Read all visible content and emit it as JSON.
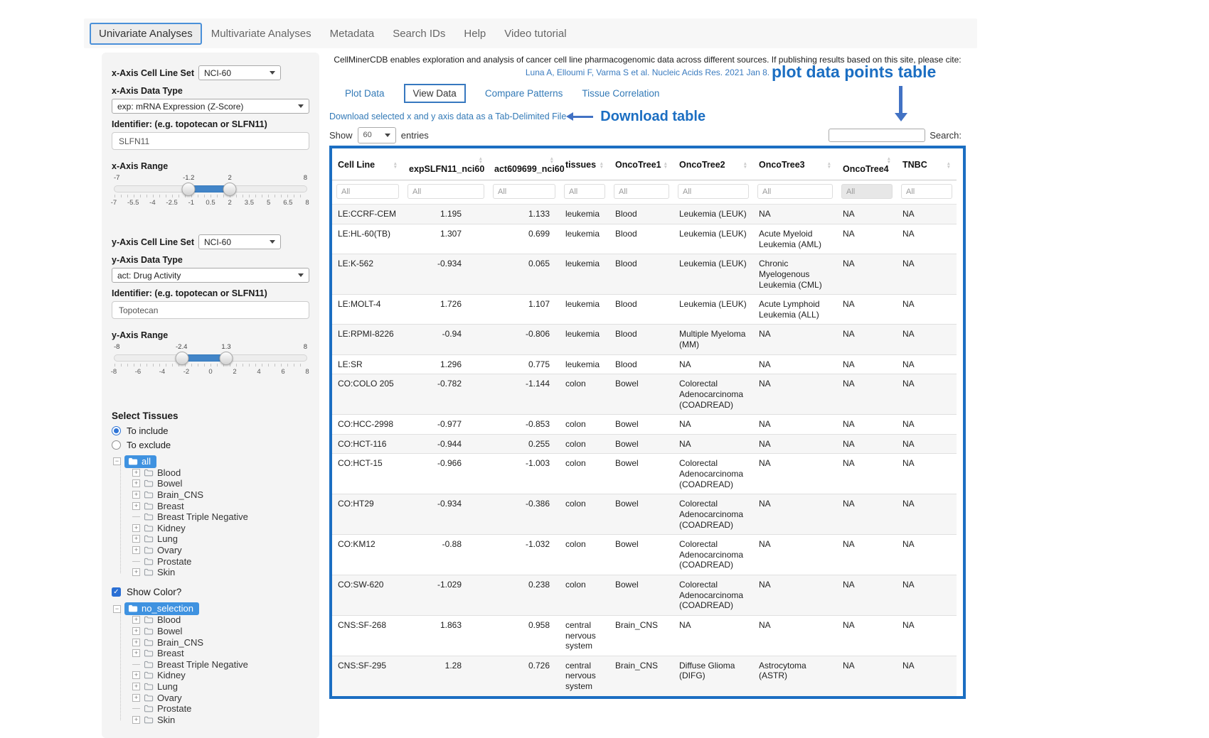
{
  "nav": {
    "items": [
      {
        "label": "Univariate Analyses",
        "active": true
      },
      {
        "label": "Multivariate Analyses",
        "active": false
      },
      {
        "label": "Metadata",
        "active": false
      },
      {
        "label": "Search IDs",
        "active": false
      },
      {
        "label": "Help",
        "active": false
      },
      {
        "label": "Video tutorial",
        "active": false
      }
    ]
  },
  "sidebar": {
    "x_axis": {
      "cell_line_set_label": "x-Axis Cell Line Set",
      "cell_line_set_value": "NCI-60",
      "data_type_label": "x-Axis Data Type",
      "data_type_value": "exp: mRNA Expression (Z-Score)",
      "identifier_label": "Identifier: (e.g. topotecan or SLFN11)",
      "identifier_value": "SLFN11",
      "range_label": "x-Axis Range",
      "range_min_label": "-7",
      "range_low": "-1.2",
      "range_high": "2",
      "range_max_label": "8",
      "ticks": [
        "-7",
        "-5.5",
        "-4",
        "-2.5",
        "-1",
        "0.5",
        "2",
        "3.5",
        "5",
        "6.5",
        "8"
      ]
    },
    "y_axis": {
      "cell_line_set_label": "y-Axis Cell Line Set",
      "cell_line_set_value": "NCI-60",
      "data_type_label": "y-Axis Data Type",
      "data_type_value": "act: Drug Activity",
      "identifier_label": "Identifier: (e.g. topotecan or SLFN11)",
      "identifier_value": "Topotecan",
      "range_label": "y-Axis Range",
      "range_min_label": "-8",
      "range_low": "-2.4",
      "range_high": "1.3",
      "range_max_label": "8",
      "ticks": [
        "-8",
        "-6",
        "-4",
        "-2",
        "0",
        "2",
        "4",
        "6",
        "8"
      ]
    },
    "select_tissues": {
      "title": "Select Tissues",
      "radio_include": "To include",
      "radio_exclude": "To exclude",
      "show_color_label": "Show Color?",
      "tree_include": {
        "root": "all",
        "items": [
          "Blood",
          "Bowel",
          "Brain_CNS",
          "Breast",
          "Breast Triple Negative",
          "Kidney",
          "Lung",
          "Ovary",
          "Prostate",
          "Skin"
        ],
        "leaf_items": [
          "Breast Triple Negative",
          "Prostate"
        ]
      },
      "tree_color": {
        "root": "no_selection",
        "items": [
          "Blood",
          "Bowel",
          "Brain_CNS",
          "Breast",
          "Breast Triple Negative",
          "Kidney",
          "Lung",
          "Ovary",
          "Prostate",
          "Skin"
        ],
        "leaf_items": [
          "Breast Triple Negative",
          "Prostate"
        ]
      }
    }
  },
  "main": {
    "description": "CellMinerCDB enables exploration and analysis of cancer cell line pharmacogenomic data across different sources. If publishing results based on this site, please cite:",
    "citation": "Luna A, Elloumi F, Varma S et al. Nucleic Acids Res. 2021 Jan 8.",
    "tabs": [
      "Plot Data",
      "View Data",
      "Compare Patterns",
      "Tissue Correlation"
    ],
    "active_tab_index": 1,
    "download_link": "Download selected x and y axis data as a Tab-Delimited File",
    "show_label": "Show",
    "entries_value": "60",
    "entries_label": "entries",
    "search_label": "Search:",
    "search_value": "",
    "annotations": {
      "download_label": "Download table",
      "table_label": "plot data points table"
    }
  },
  "table": {
    "filter_placeholder": "All",
    "columns": [
      "Cell Line",
      "expSLFN11_nci60",
      "act609699_nci60",
      "tissues",
      "OncoTree1",
      "OncoTree2",
      "OncoTree3",
      "OncoTree4",
      "TNBC"
    ],
    "rows": [
      [
        "LE:CCRF-CEM",
        "1.195",
        "1.133",
        "leukemia",
        "Blood",
        "Leukemia (LEUK)",
        "NA",
        "NA",
        "NA"
      ],
      [
        "LE:HL-60(TB)",
        "1.307",
        "0.699",
        "leukemia",
        "Blood",
        "Leukemia (LEUK)",
        "Acute Myeloid Leukemia (AML)",
        "NA",
        "NA"
      ],
      [
        "LE:K-562",
        "-0.934",
        "0.065",
        "leukemia",
        "Blood",
        "Leukemia (LEUK)",
        "Chronic Myelogenous Leukemia (CML)",
        "NA",
        "NA"
      ],
      [
        "LE:MOLT-4",
        "1.726",
        "1.107",
        "leukemia",
        "Blood",
        "Leukemia (LEUK)",
        "Acute Lymphoid Leukemia (ALL)",
        "NA",
        "NA"
      ],
      [
        "LE:RPMI-8226",
        "-0.94",
        "-0.806",
        "leukemia",
        "Blood",
        "Multiple Myeloma (MM)",
        "NA",
        "NA",
        "NA"
      ],
      [
        "LE:SR",
        "1.296",
        "0.775",
        "leukemia",
        "Blood",
        "NA",
        "NA",
        "NA",
        "NA"
      ],
      [
        "CO:COLO 205",
        "-0.782",
        "-1.144",
        "colon",
        "Bowel",
        "Colorectal Adenocarcinoma (COADREAD)",
        "NA",
        "NA",
        "NA"
      ],
      [
        "CO:HCC-2998",
        "-0.977",
        "-0.853",
        "colon",
        "Bowel",
        "NA",
        "NA",
        "NA",
        "NA"
      ],
      [
        "CO:HCT-116",
        "-0.944",
        "0.255",
        "colon",
        "Bowel",
        "NA",
        "NA",
        "NA",
        "NA"
      ],
      [
        "CO:HCT-15",
        "-0.966",
        "-1.003",
        "colon",
        "Bowel",
        "Colorectal Adenocarcinoma (COADREAD)",
        "NA",
        "NA",
        "NA"
      ],
      [
        "CO:HT29",
        "-0.934",
        "-0.386",
        "colon",
        "Bowel",
        "Colorectal Adenocarcinoma (COADREAD)",
        "NA",
        "NA",
        "NA"
      ],
      [
        "CO:KM12",
        "-0.88",
        "-1.032",
        "colon",
        "Bowel",
        "Colorectal Adenocarcinoma (COADREAD)",
        "NA",
        "NA",
        "NA"
      ],
      [
        "CO:SW-620",
        "-1.029",
        "0.238",
        "colon",
        "Bowel",
        "Colorectal Adenocarcinoma (COADREAD)",
        "NA",
        "NA",
        "NA"
      ],
      [
        "CNS:SF-268",
        "1.863",
        "0.958",
        "central nervous system",
        "Brain_CNS",
        "NA",
        "NA",
        "NA",
        "NA"
      ],
      [
        "CNS:SF-295",
        "1.28",
        "0.726",
        "central nervous system",
        "Brain_CNS",
        "Diffuse Glioma (DIFG)",
        "Astrocytoma (ASTR)",
        "NA",
        "NA"
      ]
    ],
    "colors": {
      "annotation_blue": "#1b6ec2",
      "link_blue": "#337ab7",
      "tree_selected_bg": "#3f92e0",
      "slider_fill": "#4285c8"
    }
  }
}
